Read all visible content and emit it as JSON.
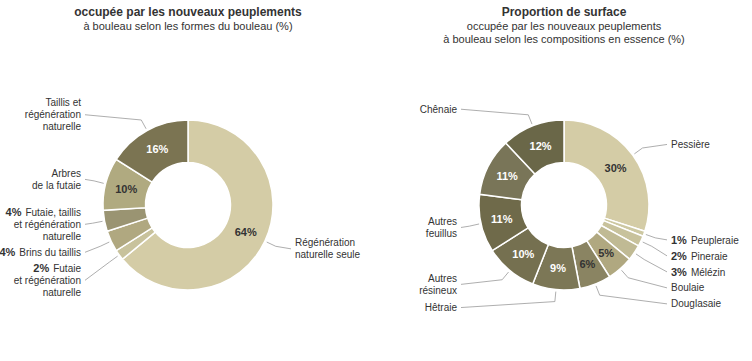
{
  "chart_data": [
    {
      "type": "donut",
      "title": "occupée par les nouveaux peuplements",
      "subtitle": "à bouleau selon les formes du bouleau (%)",
      "categories": [
        "Régénération\nnaturelle seule",
        "Futaie\net régénération\nnaturelle",
        "Brins du taillis",
        "Futaie, taillis\net régénération\nnaturelle",
        "Arbres\nde la futaie",
        "Taillis et\nrégénération\nnaturelle"
      ],
      "values": [
        64,
        2,
        4,
        4,
        10,
        16
      ],
      "value_labels": [
        "64%",
        "2%",
        "4%",
        "4%",
        "10%",
        "16%"
      ],
      "colors": [
        "#d4cca6",
        "#c8c29c",
        "#b0a880",
        "#9a9472",
        "#b0aa80",
        "#7b7452"
      ],
      "data_labels": true
    },
    {
      "type": "donut",
      "title": "Proportion de surface",
      "subtitle": "occupée par les nouveaux peuplements\nà bouleau selon les compositions en essence (%)",
      "categories": [
        "Pessière",
        "Peupleraie",
        "Pineraie",
        "Mélézin",
        "Boulaie",
        "Douglasaie",
        "Hêtraie",
        "Autres\nrésineux",
        "Autres\nfeuillus",
        null,
        "Chênaie"
      ],
      "values": [
        30,
        1,
        2,
        3,
        5,
        6,
        9,
        10,
        11,
        11,
        12
      ],
      "value_labels": [
        "30%",
        "1%",
        "2%",
        "3%",
        "5%",
        "6%",
        "9%",
        "10%",
        "11%",
        "11%",
        "12%"
      ],
      "colors": [
        "#d4cca6",
        "#cdc8a2",
        "#c8c29c",
        "#c0ba94",
        "#b0a880",
        "#8a8462",
        "#7c7756",
        "#757050",
        "#6f6a4a",
        "#797558",
        "#6a6748"
      ],
      "data_labels": true
    }
  ]
}
